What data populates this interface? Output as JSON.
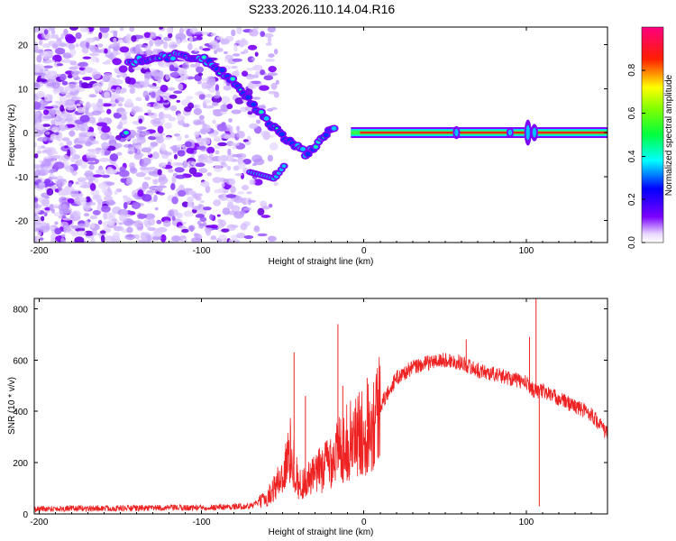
{
  "title": "S233.2026.110.14.04.R16",
  "chart_data": [
    {
      "type": "heatmap",
      "xlabel": "Height of straight line (km)",
      "ylabel": "Frequency (Hz)",
      "xlim": [
        -203,
        150
      ],
      "ylim": [
        -25,
        24
      ],
      "xticks": [
        -200,
        -100,
        0,
        100
      ],
      "yticks": [
        -20,
        -10,
        0,
        10,
        20
      ],
      "xtick_labels": [
        "-200",
        "-100",
        "0",
        "100"
      ],
      "ytick_labels": [
        "-20",
        "-10",
        "0",
        "10",
        "20"
      ],
      "colorbar": {
        "label": "Normalized spectral amplitude",
        "range": [
          0,
          1
        ],
        "ticks": [
          0.0,
          0.2,
          0.4,
          0.6,
          0.8
        ],
        "tick_labels": [
          "0.0",
          "0.2",
          "0.4",
          "0.6",
          "0.8"
        ],
        "colors": [
          "#ffffff",
          "#7b00ff",
          "#0000ff",
          "#00ffff",
          "#00ff00",
          "#ffff00",
          "#ff0000",
          "#ff0080"
        ]
      },
      "ridge": {
        "description_free": true,
        "x": [
          -145,
          -130,
          -115,
          -100,
          -92,
          -85,
          -78,
          -72,
          -65,
          -58,
          -50,
          -42,
          -35,
          -28,
          -20,
          -10,
          0,
          150
        ],
        "y": [
          16,
          17,
          17.5,
          17,
          15,
          13,
          11,
          8,
          5,
          2,
          -1,
          -3,
          -5,
          -2,
          1,
          1,
          0.5,
          0
        ]
      }
    },
    {
      "type": "line",
      "xlabel": "Height of straight line (km)",
      "ylabel": "SNR (10 * v/v)",
      "xlim": [
        -203,
        150
      ],
      "ylim": [
        0,
        840
      ],
      "xticks": [
        -200,
        -100,
        0,
        100
      ],
      "yticks": [
        0,
        200,
        400,
        600,
        800
      ],
      "xtick_labels": [
        "-200",
        "-100",
        "0",
        "100"
      ],
      "ytick_labels": [
        "0",
        "200",
        "400",
        "600",
        "800"
      ],
      "color": "#ee2222",
      "envelope": {
        "x": [
          -203,
          -150,
          -100,
          -70,
          -60,
          -50,
          -45,
          -40,
          -30,
          -20,
          -10,
          0,
          10,
          20,
          30,
          40,
          50,
          60,
          70,
          80,
          90,
          100,
          105,
          110,
          120,
          130,
          140,
          150
        ],
        "y": [
          20,
          22,
          25,
          30,
          60,
          150,
          250,
          110,
          150,
          220,
          280,
          320,
          420,
          530,
          570,
          590,
          600,
          590,
          560,
          545,
          530,
          510,
          480,
          480,
          450,
          420,
          390,
          310
        ]
      },
      "spikes": [
        {
          "x": -43,
          "y": 630
        },
        {
          "x": -36,
          "y": 460
        },
        {
          "x": -16,
          "y": 740
        },
        {
          "x": -13,
          "y": 500
        },
        {
          "x": 2,
          "y": 530
        },
        {
          "x": 63,
          "y": 680
        },
        {
          "x": 102,
          "y": 690
        },
        {
          "x": 106,
          "y": 840
        },
        {
          "x": 108,
          "y": 30
        }
      ]
    }
  ]
}
